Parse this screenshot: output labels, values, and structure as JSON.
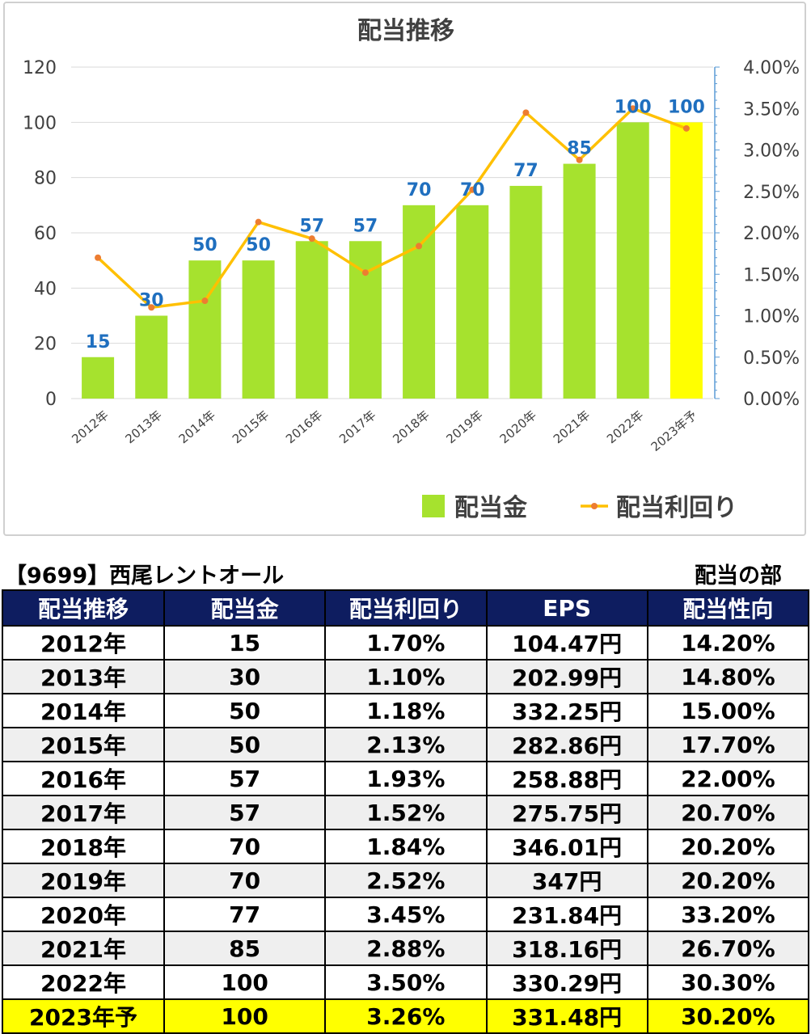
{
  "chart_data": {
    "type": "bar+line",
    "title": "配当推移",
    "categories": [
      "2012年",
      "2013年",
      "2014年",
      "2015年",
      "2016年",
      "2017年",
      "2018年",
      "2019年",
      "2020年",
      "2021年",
      "2022年",
      "2023年予"
    ],
    "series": [
      {
        "name": "配当金",
        "type": "bar",
        "axis": "left",
        "values": [
          15,
          30,
          50,
          50,
          57,
          57,
          70,
          70,
          77,
          85,
          100,
          100
        ],
        "color": "#a6e22e",
        "highlight_last_color": "#ffff00"
      },
      {
        "name": "配当利回り",
        "type": "line",
        "axis": "right",
        "values": [
          1.7,
          1.1,
          1.18,
          2.13,
          1.93,
          1.52,
          1.84,
          2.52,
          3.45,
          2.88,
          3.5,
          3.26
        ],
        "color": "#ffc000",
        "marker_color": "#ed7d31"
      }
    ],
    "y_left": {
      "min": 0,
      "max": 120,
      "ticks": [
        "0",
        "20",
        "40",
        "60",
        "80",
        "100",
        "120"
      ]
    },
    "y_right": {
      "min": 0,
      "max": 4,
      "ticks": [
        "0.00%",
        "0.50%",
        "1.00%",
        "1.50%",
        "2.00%",
        "2.50%",
        "3.00%",
        "3.50%",
        "4.00%"
      ]
    },
    "data_labels": [
      "15",
      "30",
      "50",
      "50",
      "57",
      "57",
      "70",
      "70",
      "77",
      "85",
      "100",
      "100"
    ],
    "grid": true,
    "legend_position": "bottom-right"
  },
  "company_label": "【9699】西尾レントオール",
  "section_label": "配当の部",
  "table": {
    "headers": [
      "配当推移",
      "配当金",
      "配当利回り",
      "EPS",
      "配当性向"
    ],
    "rows": [
      [
        "2012年",
        "15",
        "1.70%",
        "104.47円",
        "14.20%"
      ],
      [
        "2013年",
        "30",
        "1.10%",
        "202.99円",
        "14.80%"
      ],
      [
        "2014年",
        "50",
        "1.18%",
        "332.25円",
        "15.00%"
      ],
      [
        "2015年",
        "50",
        "2.13%",
        "282.86円",
        "17.70%"
      ],
      [
        "2016年",
        "57",
        "1.93%",
        "258.88円",
        "22.00%"
      ],
      [
        "2017年",
        "57",
        "1.52%",
        "275.75円",
        "20.70%"
      ],
      [
        "2018年",
        "70",
        "1.84%",
        "346.01円",
        "20.20%"
      ],
      [
        "2019年",
        "70",
        "2.52%",
        "347円",
        "20.20%"
      ],
      [
        "2020年",
        "77",
        "3.45%",
        "231.84円",
        "33.20%"
      ],
      [
        "2021年",
        "85",
        "2.88%",
        "318.16円",
        "26.70%"
      ],
      [
        "2022年",
        "100",
        "3.50%",
        "330.29円",
        "30.30%"
      ],
      [
        "2023年予",
        "100",
        "3.26%",
        "331.48円",
        "30.20%"
      ]
    ],
    "header_color": "#0e1d60",
    "forecast_row_color": "#ffff00"
  }
}
